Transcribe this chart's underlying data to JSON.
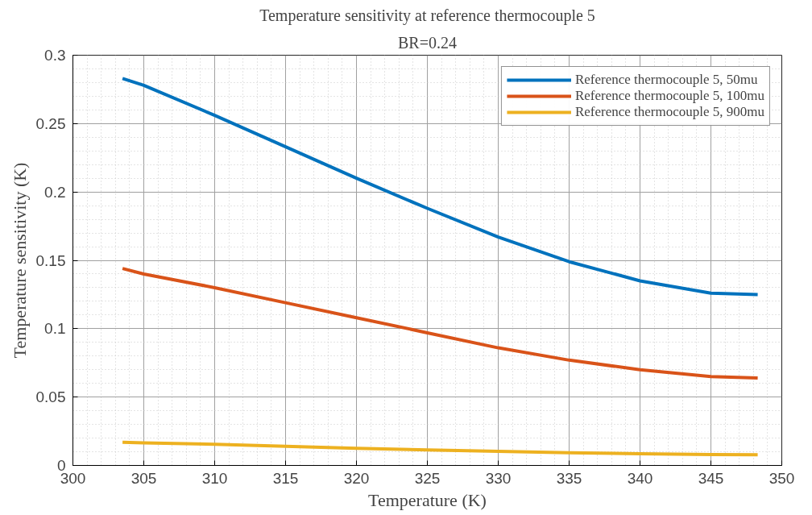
{
  "chart_data": {
    "type": "line",
    "title": "Temperature sensitivity at reference thermocouple 5",
    "subtitle": "BR=0.24",
    "xlabel": "Temperature (K)",
    "ylabel": "Temperature sensitivity (K)",
    "x": [
      303.5,
      305,
      310,
      315,
      320,
      325,
      330,
      335,
      340,
      345,
      348.3
    ],
    "series": [
      {
        "name": "Reference thermocouple 5, 50mu",
        "color": "#0072bd",
        "values": [
          0.283,
          0.278,
          0.256,
          0.233,
          0.21,
          0.188,
          0.167,
          0.149,
          0.135,
          0.126,
          0.125
        ]
      },
      {
        "name": "Reference thermocouple 5, 100mu",
        "color": "#d95319",
        "values": [
          0.144,
          0.14,
          0.13,
          0.119,
          0.108,
          0.097,
          0.086,
          0.077,
          0.07,
          0.065,
          0.064
        ]
      },
      {
        "name": "Reference thermocouple 5, 900mu",
        "color": "#edb120",
        "values": [
          0.017,
          0.0165,
          0.0155,
          0.014,
          0.0125,
          0.0114,
          0.0103,
          0.0093,
          0.0085,
          0.008,
          0.0078
        ]
      }
    ],
    "xlim": [
      300,
      350
    ],
    "ylim": [
      0,
      0.3
    ],
    "xticks": [
      300,
      305,
      310,
      315,
      320,
      325,
      330,
      335,
      340,
      345,
      350
    ],
    "yticks": [
      0,
      0.05,
      0.1,
      0.15,
      0.2,
      0.25,
      0.3
    ],
    "grid": true,
    "legend": "top right"
  }
}
